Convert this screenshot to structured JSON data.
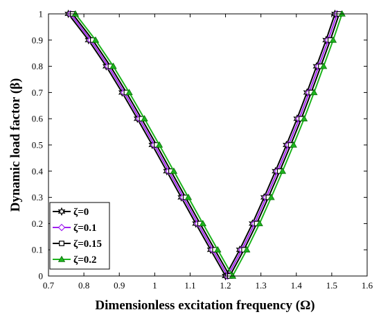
{
  "chart_data": {
    "type": "line",
    "title": "",
    "xlabel": "Dimensionless excitation frequency (Ω)",
    "ylabel": "Dynamic load factor (β)",
    "xlim": [
      0.7,
      1.6
    ],
    "ylim": [
      0,
      1
    ],
    "x_ticks": [
      "0.7",
      "0.8",
      "0.9",
      "1",
      "1.1",
      "1.2",
      "1.3",
      "1.4",
      "1.5",
      "1.6"
    ],
    "y_ticks": [
      "0",
      "0.1",
      "0.2",
      "0.3",
      "0.4",
      "0.5",
      "0.6",
      "0.7",
      "0.8",
      "0.9",
      "1"
    ],
    "grid": false,
    "legend_position": "bottom-left",
    "series": [
      {
        "name": "ζ=0",
        "color": "#000000",
        "marker": "hexagram",
        "left": {
          "y": [
            1,
            0.9,
            0.8,
            0.7,
            0.6,
            0.5,
            0.4,
            0.3,
            0.2,
            0.1,
            0
          ],
          "x": [
            0.756,
            0.813,
            0.863,
            0.908,
            0.951,
            0.993,
            1.034,
            1.075,
            1.116,
            1.158,
            1.2
          ]
        },
        "right": {
          "y": [
            0,
            0.1,
            0.2,
            0.3,
            0.4,
            0.5,
            0.6,
            0.7,
            0.8,
            0.9,
            1
          ],
          "x": [
            1.2,
            1.24,
            1.276,
            1.309,
            1.341,
            1.372,
            1.402,
            1.43,
            1.457,
            1.484,
            1.509
          ]
        }
      },
      {
        "name": "ζ=0.1",
        "color": "#a020f0",
        "marker": "diamond",
        "left": {
          "y": [
            1,
            0.9,
            0.8,
            0.7,
            0.6,
            0.5,
            0.4,
            0.3,
            0.2,
            0.1,
            0
          ],
          "x": [
            0.762,
            0.819,
            0.869,
            0.914,
            0.957,
            0.999,
            1.04,
            1.081,
            1.122,
            1.164,
            1.206
          ]
        },
        "right": {
          "y": [
            0,
            0.1,
            0.2,
            0.3,
            0.4,
            0.5,
            0.6,
            0.7,
            0.8,
            0.9,
            1
          ],
          "x": [
            1.206,
            1.246,
            1.282,
            1.315,
            1.347,
            1.378,
            1.408,
            1.436,
            1.463,
            1.49,
            1.515
          ]
        }
      },
      {
        "name": "ζ=0.15",
        "color": "#000000",
        "marker": "square",
        "left": {
          "y": [
            1,
            0.9,
            0.8,
            0.7,
            0.6,
            0.5,
            0.4,
            0.3,
            0.2,
            0.1,
            0
          ],
          "x": [
            0.768,
            0.825,
            0.875,
            0.92,
            0.963,
            1.005,
            1.046,
            1.087,
            1.128,
            1.17,
            1.212
          ]
        },
        "right": {
          "y": [
            0,
            0.1,
            0.2,
            0.3,
            0.4,
            0.5,
            0.6,
            0.7,
            0.8,
            0.9,
            1
          ],
          "x": [
            1.212,
            1.252,
            1.288,
            1.321,
            1.353,
            1.384,
            1.414,
            1.442,
            1.469,
            1.496,
            1.521
          ]
        }
      },
      {
        "name": "ζ=0.2",
        "color": "#1db31d",
        "marker": "triangle",
        "left": {
          "y": [
            1,
            0.9,
            0.8,
            0.7,
            0.6,
            0.5,
            0.4,
            0.3,
            0.2,
            0.1,
            0
          ],
          "x": [
            0.776,
            0.833,
            0.883,
            0.928,
            0.971,
            1.013,
            1.054,
            1.095,
            1.136,
            1.178,
            1.22
          ]
        },
        "right": {
          "y": [
            0,
            0.1,
            0.2,
            0.3,
            0.4,
            0.5,
            0.6,
            0.7,
            0.8,
            0.9,
            1
          ],
          "x": [
            1.22,
            1.26,
            1.296,
            1.329,
            1.361,
            1.392,
            1.422,
            1.45,
            1.477,
            1.504,
            1.529
          ]
        }
      }
    ]
  }
}
